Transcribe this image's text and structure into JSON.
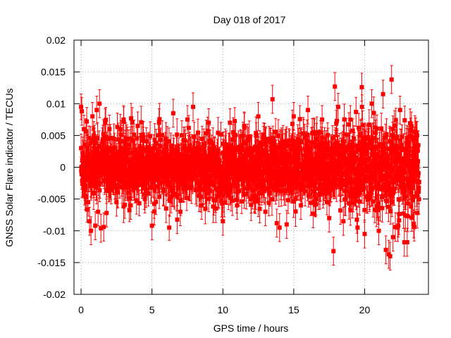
{
  "chart_data": {
    "type": "scatter",
    "title": "Day 018 of 2017",
    "xlabel": "GPS time / hours",
    "ylabel": "GNSS Solar Flare indicator / TECUs",
    "xlim": [
      -0.5,
      24.5
    ],
    "ylim": [
      -0.02,
      0.02
    ],
    "x_ticks": [
      0,
      5,
      10,
      15,
      20
    ],
    "x_tick_labels": [
      "0",
      "5",
      "10",
      "15",
      "20"
    ],
    "y_ticks": [
      -0.02,
      -0.015,
      -0.01,
      -0.005,
      0,
      0.005,
      0.01,
      0.015,
      0.02
    ],
    "y_tick_labels": [
      "-0.02",
      "-0.015",
      "-0.01",
      "-0.005",
      "0",
      "0.005",
      "0.01",
      "0.015",
      "0.02"
    ],
    "grid": true,
    "legend": "none",
    "marker": "square",
    "error_bars": true,
    "color": "#ff0000",
    "series": [
      {
        "marker": "square",
        "points": [
          [
            0.0,
            0.003
          ],
          [
            0.05,
            0.0088
          ],
          [
            0.1,
            -0.0026
          ],
          [
            0.2,
            0.006
          ],
          [
            0.3,
            -0.0045
          ],
          [
            0.4,
            0.0072
          ],
          [
            0.5,
            -0.0055
          ],
          [
            0.6,
            -0.0085
          ],
          [
            0.7,
            -0.01
          ],
          [
            0.8,
            0.008
          ],
          [
            0.9,
            0.005
          ],
          [
            1.0,
            -0.0092
          ],
          [
            1.1,
            0.009
          ],
          [
            1.2,
            -0.007
          ],
          [
            1.3,
            0.01
          ],
          [
            1.4,
            -0.0096
          ],
          [
            1.5,
            0.004
          ],
          [
            1.6,
            -0.0094
          ],
          [
            1.7,
            0.007
          ],
          [
            1.8,
            -0.0072
          ],
          [
            2.0,
            0.006
          ],
          [
            2.5,
            -0.0055
          ],
          [
            3.0,
            0.0075
          ],
          [
            3.5,
            -0.006
          ],
          [
            4.0,
            0.0065
          ],
          [
            4.5,
            -0.005
          ],
          [
            5.0,
            -0.0092
          ],
          [
            5.5,
            0.007
          ],
          [
            6.0,
            -0.0065
          ],
          [
            6.5,
            0.0085
          ],
          [
            7.0,
            -0.007
          ],
          [
            7.5,
            0.0075
          ],
          [
            7.9,
            0.0095
          ],
          [
            8.5,
            -0.006
          ],
          [
            9.0,
            0.007
          ],
          [
            9.5,
            -0.0065
          ],
          [
            10.0,
            -0.0085
          ],
          [
            10.5,
            0.007
          ],
          [
            11.0,
            -0.006
          ],
          [
            11.5,
            0.0065
          ],
          [
            12.0,
            -0.005
          ],
          [
            12.5,
            0.008
          ],
          [
            13.0,
            -0.007
          ],
          [
            13.5,
            0.0107
          ],
          [
            13.8,
            -0.0088
          ],
          [
            14.0,
            -0.0095
          ],
          [
            14.5,
            -0.009
          ],
          [
            15.0,
            0.008
          ],
          [
            15.5,
            -0.006
          ],
          [
            16.0,
            0.009
          ],
          [
            16.5,
            -0.0055
          ],
          [
            17.0,
            0.0075
          ],
          [
            17.5,
            -0.008
          ],
          [
            17.8,
            -0.0132
          ],
          [
            17.9,
            0.0127
          ],
          [
            18.5,
            -0.0085
          ],
          [
            19.0,
            0.0075
          ],
          [
            19.5,
            -0.0095
          ],
          [
            19.8,
            0.0126
          ],
          [
            20.0,
            -0.0105
          ],
          [
            20.5,
            0.01
          ],
          [
            21.0,
            -0.01
          ],
          [
            21.3,
            0.0115
          ],
          [
            21.5,
            -0.013
          ],
          [
            21.7,
            -0.0137
          ],
          [
            21.8,
            -0.014
          ],
          [
            21.9,
            0.0138
          ],
          [
            22.0,
            -0.011
          ],
          [
            22.5,
            0.009
          ],
          [
            22.8,
            -0.0118
          ],
          [
            23.0,
            -0.0118
          ],
          [
            23.3,
            0.0065
          ],
          [
            23.5,
            -0.0094
          ],
          [
            23.7,
            0.005
          ]
        ]
      }
    ]
  }
}
